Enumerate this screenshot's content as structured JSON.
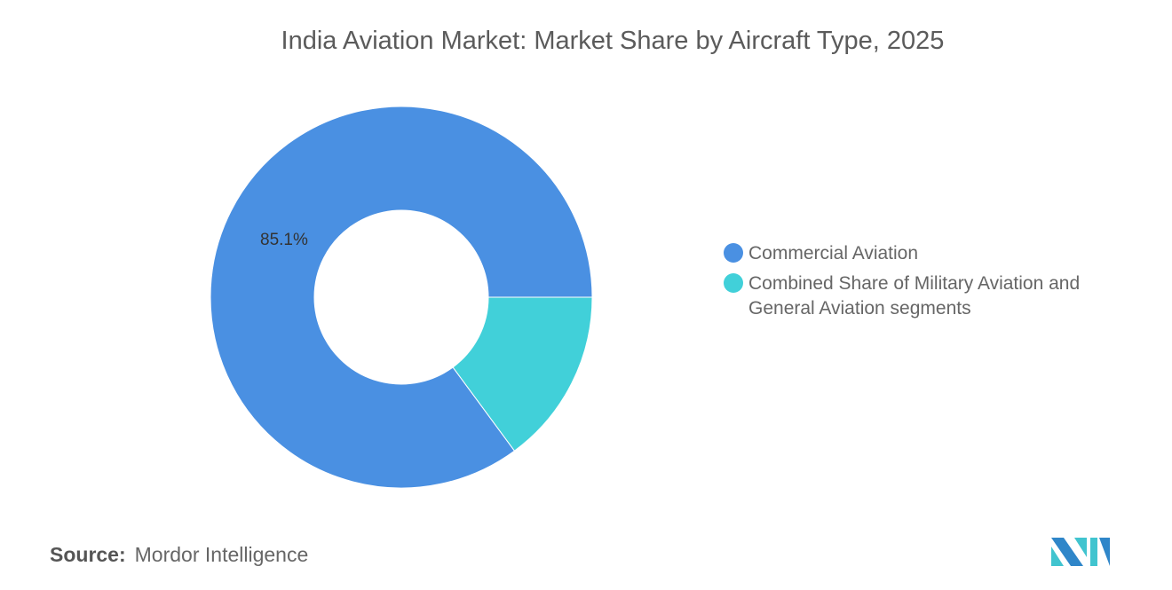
{
  "chart_data": {
    "type": "pie",
    "variant": "donut",
    "title": "India Aviation Market: Market Share by Aircraft Type, 2025",
    "categories": [
      "Commercial Aviation",
      "Combined Share of Military Aviation and General Aviation segments"
    ],
    "values": [
      85.1,
      14.9
    ],
    "unit": "%",
    "data_labels": [
      "85.1%",
      ""
    ],
    "colors": [
      "#4a90e2",
      "#41d0d9"
    ],
    "legend_position": "right"
  },
  "source": {
    "label": "Source:",
    "value": "Mordor Intelligence"
  },
  "logo": {
    "text": "Mordor Intelligence",
    "colors": [
      "#2f86c9",
      "#41c4cf"
    ]
  }
}
